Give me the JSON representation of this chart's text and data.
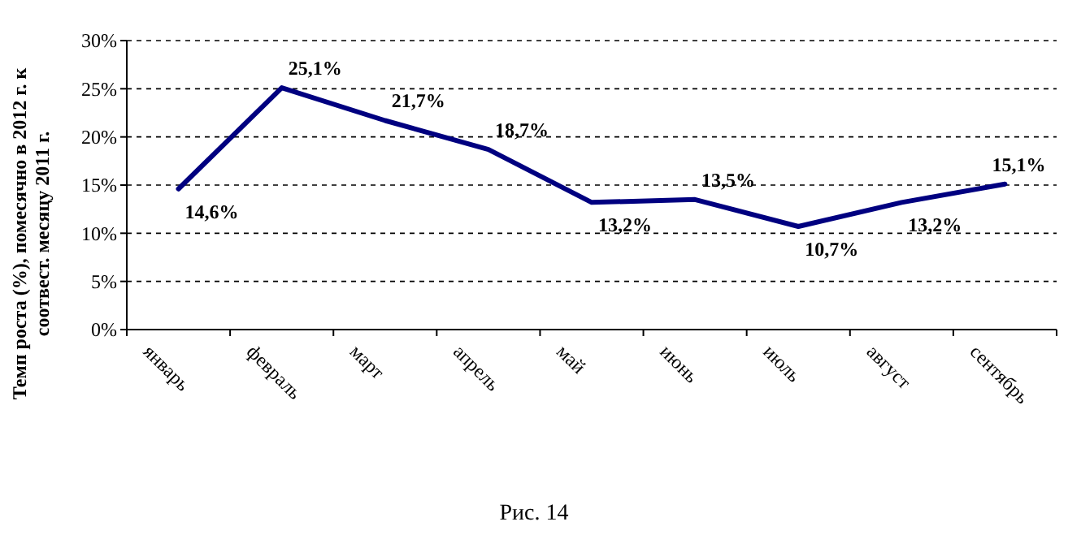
{
  "chart_data": {
    "type": "line",
    "ylabel": "Темп роста (%), помесячно в 2012 г. к соотвест. месяцу 2011 г.",
    "categories": [
      "январь",
      "февраль",
      "март",
      "апрель",
      "май",
      "июнь",
      "июль",
      "август",
      "сентябрь"
    ],
    "series": [
      {
        "color": "#000080",
        "values": [
          14.6,
          25.1,
          21.7,
          18.7,
          13.2,
          13.5,
          10.7,
          13.2,
          15.1
        ],
        "value_labels": [
          "14,6%",
          "25,1%",
          "21,7%",
          "18,7%",
          "13,2%",
          "13,5%",
          "10,7%",
          "13,2%",
          "15,1%"
        ]
      }
    ],
    "ylim": [
      0,
      30
    ],
    "yticks": [
      {
        "value": 0,
        "label": "0%"
      },
      {
        "value": 5,
        "label": "5%"
      },
      {
        "value": 10,
        "label": "10%"
      },
      {
        "value": 15,
        "label": "15%"
      },
      {
        "value": 20,
        "label": "20%"
      },
      {
        "value": 25,
        "label": "25%"
      },
      {
        "value": 30,
        "label": "30%"
      }
    ],
    "grid": "y",
    "marker": "none",
    "line_style": "solid",
    "annotations": [
      "Рис. 14"
    ]
  }
}
